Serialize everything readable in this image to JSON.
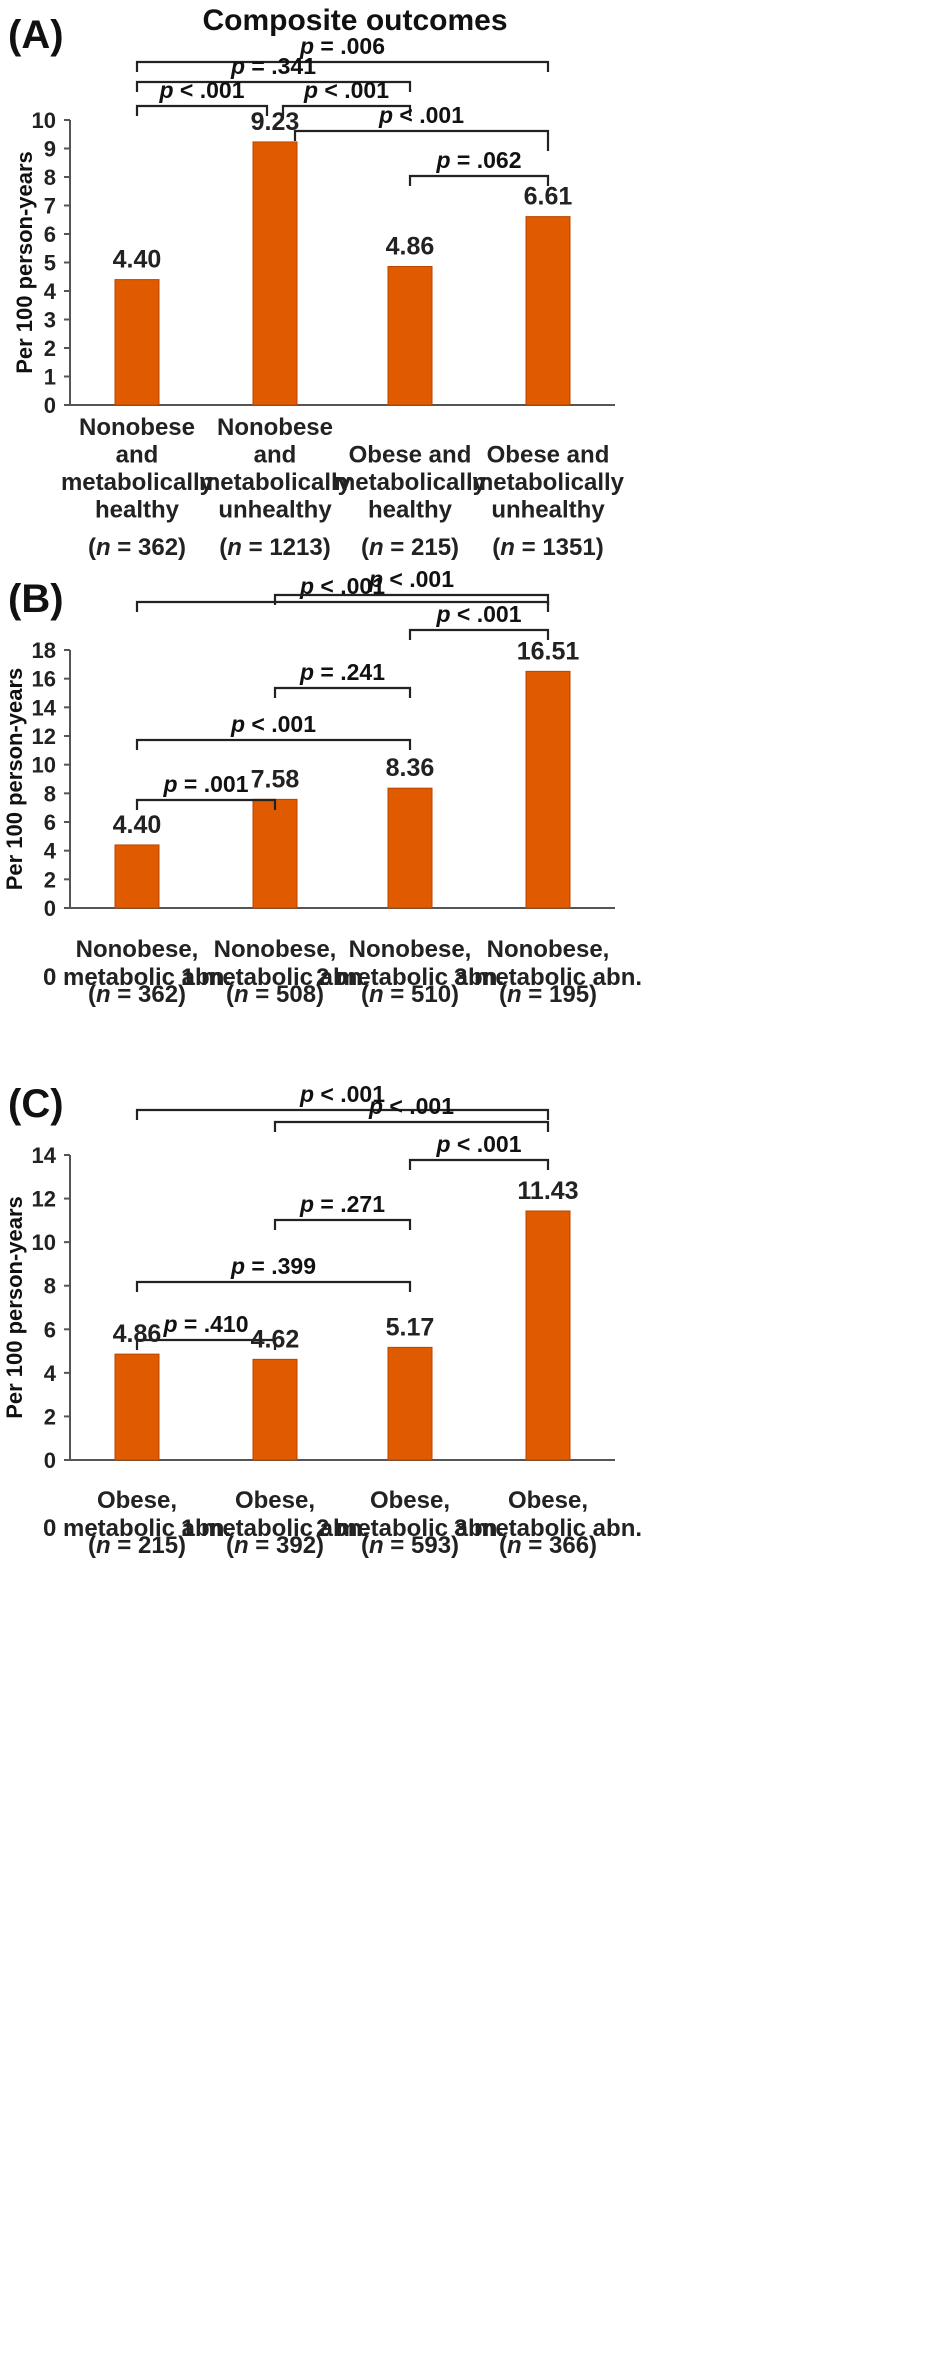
{
  "title": "Composite outcomes",
  "colors": {
    "bar": "#E05A00",
    "bar_edge": "#B84600"
  },
  "chart_data": [
    {
      "panel": "(A)",
      "type": "bar",
      "ylabel": "Per 100 person-years",
      "ylim": [
        0,
        10
      ],
      "yticks": [
        0,
        1,
        2,
        3,
        4,
        5,
        6,
        7,
        8,
        9,
        10
      ],
      "categories": [
        [
          "Nonobese",
          "and",
          "metabolically",
          "healthy"
        ],
        [
          "Nonobese",
          "and",
          "metabolically",
          "unhealthy"
        ],
        [
          "Obese and",
          "metabolically",
          "healthy"
        ],
        [
          "Obese and",
          "metabolically",
          "unhealthy"
        ]
      ],
      "n": [
        "362",
        "1213",
        "215",
        "1351"
      ],
      "values": [
        4.4,
        9.23,
        4.86,
        6.61
      ],
      "value_labels": [
        "4.40",
        "9.23",
        "4.86",
        "6.61"
      ],
      "comparisons": [
        {
          "from": 0,
          "to": 3,
          "label": "p = .006"
        },
        {
          "from": 0,
          "to": 2,
          "label": "p = .341"
        },
        {
          "from": 0,
          "to": 1,
          "label": "p < .001"
        },
        {
          "from": 1,
          "to": 2,
          "label": "p < .001"
        },
        {
          "from": 1,
          "to": 3,
          "label": "p < .001"
        },
        {
          "from": 2,
          "to": 3,
          "label": "p = .062"
        }
      ]
    },
    {
      "panel": "(B)",
      "type": "bar",
      "ylabel": "Per 100 person-years",
      "ylim": [
        0,
        18
      ],
      "yticks": [
        0,
        2,
        4,
        6,
        8,
        10,
        12,
        14,
        16,
        18
      ],
      "categories": [
        [
          "Nonobese,",
          "0 metabolic abn."
        ],
        [
          "Nonobese,",
          "1 metabolic abn."
        ],
        [
          "Nonobese,",
          "2 metabolic abn."
        ],
        [
          "Nonobese,",
          "3 metabolic abn."
        ]
      ],
      "n": [
        "362",
        "508",
        "510",
        "195"
      ],
      "values": [
        4.4,
        7.58,
        8.36,
        16.51
      ],
      "value_labels": [
        "4.40",
        "7.58",
        "8.36",
        "16.51"
      ],
      "comparisons": [
        {
          "from": 0,
          "to": 3,
          "label": "p < .001"
        },
        {
          "from": 1,
          "to": 3,
          "label": "p < .001"
        },
        {
          "from": 2,
          "to": 3,
          "label": "p < .001"
        },
        {
          "from": 1,
          "to": 2,
          "label": "p = .241"
        },
        {
          "from": 0,
          "to": 2,
          "label": "p < .001"
        },
        {
          "from": 0,
          "to": 1,
          "label": "p = .001"
        }
      ]
    },
    {
      "panel": "(C)",
      "type": "bar",
      "ylabel": "Per 100 person-years",
      "ylim": [
        0,
        14
      ],
      "yticks": [
        0,
        2,
        4,
        6,
        8,
        10,
        12,
        14
      ],
      "categories": [
        [
          "Obese,",
          "0 metabolic abn."
        ],
        [
          "Obese,",
          "1 metabolic abn."
        ],
        [
          "Obese,",
          "2 metabolic abn."
        ],
        [
          "Obese,",
          "3 metabolic abn."
        ]
      ],
      "n": [
        "215",
        "392",
        "593",
        "366"
      ],
      "values": [
        4.86,
        4.62,
        5.17,
        11.43
      ],
      "value_labels": [
        "4.86",
        "4.62",
        "5.17",
        "11.43"
      ],
      "comparisons": [
        {
          "from": 0,
          "to": 3,
          "label": "p < .001"
        },
        {
          "from": 1,
          "to": 3,
          "label": "p < .001"
        },
        {
          "from": 2,
          "to": 3,
          "label": "p < .001"
        },
        {
          "from": 1,
          "to": 2,
          "label": "p = .271"
        },
        {
          "from": 0,
          "to": 2,
          "label": "p = .399"
        },
        {
          "from": 0,
          "to": 1,
          "label": "p = .410"
        }
      ]
    }
  ]
}
